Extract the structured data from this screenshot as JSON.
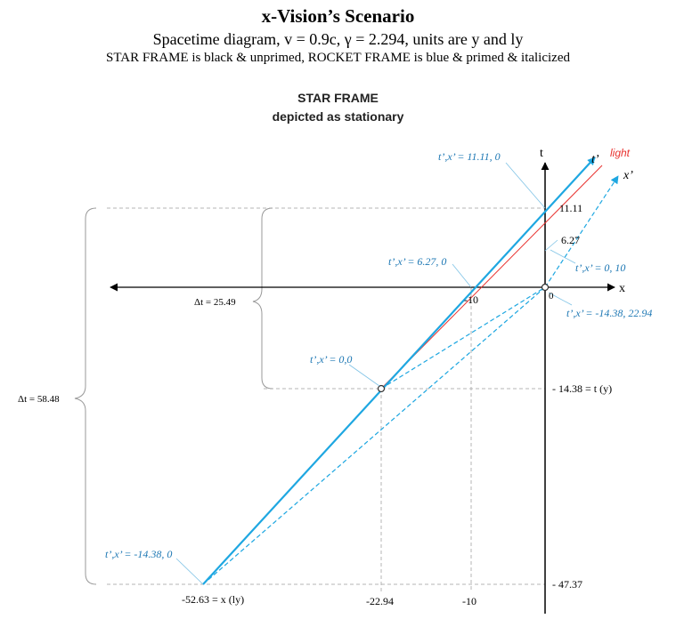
{
  "header": {
    "title": "x-Vision’s Scenario",
    "subtitle": "Spacetime diagram, v = 0.9c, γ = 2.294, units are y and ly",
    "legend_note": "STAR FRAME is black & unprimed, ROCKET FRAME is blue & primed & italicized"
  },
  "frame_label": {
    "line1": "STAR FRAME",
    "line2": "depicted as stationary"
  },
  "axes": {
    "t_label": "t",
    "x_label": "x",
    "t_prime_label": "t’",
    "x_prime_label": "x’",
    "light_label": "light",
    "origin_label": "0"
  },
  "t_axis_ticks": {
    "t_11_11": "11.11",
    "t_6_27": "6.27",
    "t_neg_14_38": "- 14.38 = t (y)",
    "t_neg_47_37": "- 47.37"
  },
  "x_axis_ticks": {
    "x_neg_10_upper": "-10",
    "x_neg_52_63": "-52.63 = x (ly)",
    "x_neg_22_94": "-22.94",
    "x_neg_10_lower": "-10"
  },
  "rocket_events": {
    "e_11_11": "t’,x’ = 11.11, 0",
    "e_6_27": "t’,x’ = 6.27, 0",
    "e_0_10": "t’,x’ = 0, 10",
    "e_neg_14_38_22_94": "t’,x’ = -14.38, 22.94",
    "e_0_0": "t’,x’ = 0,0",
    "e_neg_14_38_0": "t’,x’ = -14.38, 0"
  },
  "intervals": {
    "dt_small": "Δt = 25.49",
    "dt_large": "Δt = 58.48"
  },
  "colors": {
    "rocket_blue": "#1ea7e1",
    "light_red": "#e8322f",
    "star_black": "#000000",
    "guide_gray": "#b4b4b4"
  }
}
